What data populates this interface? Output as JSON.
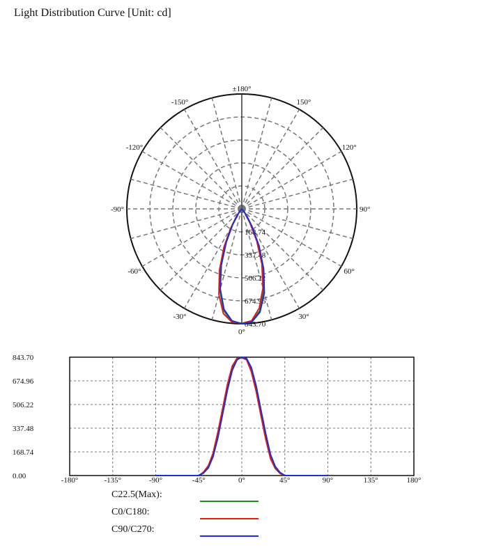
{
  "title": "Light Distribution Curve [Unit: cd]",
  "colors": {
    "green": "#1a8a1a",
    "red": "#e21a1a",
    "blue": "#1b2fd6",
    "grid": "#777777"
  },
  "chart_data": [
    {
      "type": "polar",
      "angle_labels": [
        "±180°",
        "150°",
        "120°",
        "90°",
        "60°",
        "30°",
        "0°",
        "-30°",
        "-60°",
        "-90°",
        "-120°",
        "-150°"
      ],
      "radial_labels": [
        "168.74",
        "337.48",
        "506.22",
        "674.96",
        "843.70"
      ],
      "rmax": 843.7,
      "series": [
        {
          "name": "C22.5(Max)",
          "color": "#1a8a1a",
          "points": [
            [
              -45,
              0
            ],
            [
              -40,
              20
            ],
            [
              -35,
              60
            ],
            [
              -30,
              140
            ],
            [
              -25,
              280
            ],
            [
              -20,
              450
            ],
            [
              -15,
              620
            ],
            [
              -10,
              760
            ],
            [
              -5,
              830
            ],
            [
              0,
              843.7
            ],
            [
              5,
              830
            ],
            [
              10,
              760
            ],
            [
              15,
              620
            ],
            [
              20,
              450
            ],
            [
              25,
              280
            ],
            [
              30,
              140
            ],
            [
              35,
              60
            ],
            [
              40,
              20
            ],
            [
              45,
              0
            ]
          ]
        },
        {
          "name": "C0/C180",
          "color": "#e21a1a",
          "points": [
            [
              -45,
              0
            ],
            [
              -40,
              25
            ],
            [
              -35,
              70
            ],
            [
              -30,
              160
            ],
            [
              -25,
              310
            ],
            [
              -20,
              480
            ],
            [
              -15,
              650
            ],
            [
              -10,
              780
            ],
            [
              -5,
              835
            ],
            [
              0,
              840
            ],
            [
              5,
              825
            ],
            [
              10,
              740
            ],
            [
              15,
              600
            ],
            [
              20,
              430
            ],
            [
              25,
              260
            ],
            [
              30,
              120
            ],
            [
              35,
              50
            ],
            [
              40,
              15
            ],
            [
              45,
              0
            ]
          ]
        },
        {
          "name": "C90/C270",
          "color": "#1b2fd6",
          "points": [
            [
              -45,
              0
            ],
            [
              -40,
              18
            ],
            [
              -35,
              55
            ],
            [
              -30,
              135
            ],
            [
              -25,
              270
            ],
            [
              -20,
              440
            ],
            [
              -15,
              610
            ],
            [
              -10,
              750
            ],
            [
              -5,
              825
            ],
            [
              0,
              843.7
            ],
            [
              5,
              835
            ],
            [
              10,
              770
            ],
            [
              15,
              640
            ],
            [
              20,
              470
            ],
            [
              25,
              300
            ],
            [
              30,
              150
            ],
            [
              35,
              65
            ],
            [
              40,
              22
            ],
            [
              45,
              0
            ]
          ]
        }
      ]
    },
    {
      "type": "line",
      "x_ticks": [
        "-180°",
        "-135°",
        "-90°",
        "-45°",
        "0°",
        "45°",
        "90°",
        "135°",
        "180°"
      ],
      "xlim": [
        -180,
        180
      ],
      "y_ticks": [
        "843.70",
        "674.96",
        "506.22",
        "337.48",
        "168.74",
        "0.00"
      ],
      "ylim": [
        0,
        843.7
      ],
      "grid": true,
      "series": [
        {
          "name": "C22.5(Max)",
          "color": "#1a8a1a",
          "points": [
            [
              -90,
              0
            ],
            [
              -45,
              0
            ],
            [
              -40,
              20
            ],
            [
              -35,
              60
            ],
            [
              -30,
              140
            ],
            [
              -25,
              280
            ],
            [
              -20,
              450
            ],
            [
              -15,
              620
            ],
            [
              -10,
              760
            ],
            [
              -5,
              830
            ],
            [
              0,
              843.7
            ],
            [
              5,
              830
            ],
            [
              10,
              760
            ],
            [
              15,
              620
            ],
            [
              20,
              450
            ],
            [
              25,
              280
            ],
            [
              30,
              140
            ],
            [
              35,
              60
            ],
            [
              40,
              20
            ],
            [
              45,
              0
            ],
            [
              90,
              0
            ]
          ]
        },
        {
          "name": "C0/C180",
          "color": "#e21a1a",
          "points": [
            [
              -90,
              0
            ],
            [
              -45,
              0
            ],
            [
              -40,
              25
            ],
            [
              -35,
              70
            ],
            [
              -30,
              160
            ],
            [
              -25,
              310
            ],
            [
              -20,
              480
            ],
            [
              -15,
              650
            ],
            [
              -10,
              780
            ],
            [
              -5,
              835
            ],
            [
              0,
              840
            ],
            [
              5,
              825
            ],
            [
              10,
              740
            ],
            [
              15,
              600
            ],
            [
              20,
              430
            ],
            [
              25,
              260
            ],
            [
              30,
              120
            ],
            [
              35,
              50
            ],
            [
              40,
              15
            ],
            [
              45,
              0
            ],
            [
              90,
              0
            ]
          ]
        },
        {
          "name": "C90/C270",
          "color": "#1b2fd6",
          "points": [
            [
              -90,
              0
            ],
            [
              -45,
              0
            ],
            [
              -40,
              18
            ],
            [
              -35,
              55
            ],
            [
              -30,
              135
            ],
            [
              -25,
              270
            ],
            [
              -20,
              440
            ],
            [
              -15,
              610
            ],
            [
              -10,
              750
            ],
            [
              -5,
              825
            ],
            [
              0,
              843.7
            ],
            [
              5,
              835
            ],
            [
              10,
              770
            ],
            [
              15,
              640
            ],
            [
              20,
              470
            ],
            [
              25,
              300
            ],
            [
              30,
              150
            ],
            [
              35,
              65
            ],
            [
              40,
              22
            ],
            [
              45,
              0
            ],
            [
              90,
              0
            ]
          ]
        }
      ]
    }
  ],
  "legend": [
    {
      "label": "C22.5(Max):",
      "color": "#1a8a1a"
    },
    {
      "label": "C0/C180:",
      "color": "#e21a1a"
    },
    {
      "label": "C90/C270:",
      "color": "#1b2fd6"
    }
  ]
}
